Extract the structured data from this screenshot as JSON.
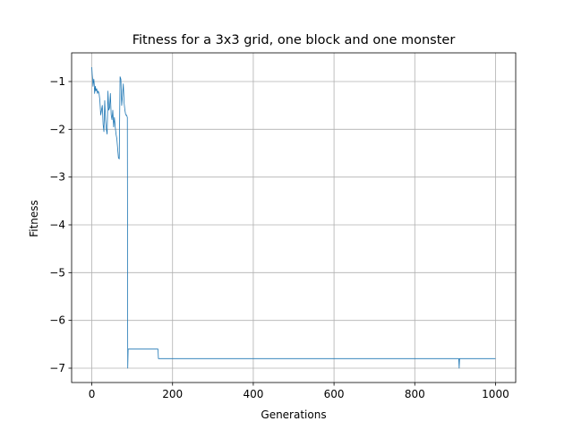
{
  "chart_data": {
    "type": "line",
    "title": "Fitness for a 3x3 grid, one block and one monster",
    "xlabel": "Generations",
    "ylabel": "Fitness",
    "xlim": [
      -50,
      1050
    ],
    "ylim": [
      -7.3,
      -0.4
    ],
    "xticks": [
      0,
      200,
      400,
      600,
      800,
      1000
    ],
    "yticks": [
      -7,
      -6,
      -5,
      -4,
      -3,
      -2,
      -1
    ],
    "grid": true,
    "series": [
      {
        "color": "#1f77b4",
        "x": [
          0,
          1,
          2,
          3,
          4,
          5,
          6,
          7,
          8,
          9,
          10,
          12,
          14,
          16,
          18,
          20,
          22,
          24,
          26,
          28,
          30,
          32,
          34,
          36,
          38,
          40,
          42,
          44,
          46,
          48,
          50,
          52,
          54,
          56,
          58,
          60,
          62,
          64,
          66,
          68,
          70,
          72,
          74,
          76,
          78,
          80,
          82,
          84,
          86,
          88,
          89,
          90,
          92,
          94,
          96,
          100,
          120,
          140,
          150,
          160,
          164,
          165,
          166,
          200,
          300,
          400,
          500,
          600,
          700,
          800,
          900,
          908,
          909,
          910,
          911,
          912,
          920,
          1000
        ],
        "y": [
          -0.7,
          -0.85,
          -0.95,
          -1.1,
          -1.0,
          -0.95,
          -1.05,
          -1.25,
          -1.15,
          -1.1,
          -1.2,
          -1.15,
          -1.25,
          -1.2,
          -1.25,
          -1.4,
          -1.7,
          -1.6,
          -1.5,
          -1.9,
          -2.05,
          -1.4,
          -1.8,
          -2.0,
          -2.1,
          -1.2,
          -1.6,
          -1.55,
          -1.25,
          -1.7,
          -1.8,
          -1.6,
          -1.95,
          -1.75,
          -1.95,
          -2.1,
          -2.2,
          -2.4,
          -2.6,
          -2.62,
          -0.9,
          -0.95,
          -1.5,
          -1.3,
          -1.05,
          -1.45,
          -1.6,
          -1.7,
          -1.7,
          -1.75,
          -7.0,
          -6.6,
          -6.6,
          -6.6,
          -6.6,
          -6.6,
          -6.6,
          -6.6,
          -6.6,
          -6.6,
          -6.6,
          -6.8,
          -6.8,
          -6.8,
          -6.8,
          -6.8,
          -6.8,
          -6.8,
          -6.8,
          -6.8,
          -6.8,
          -6.8,
          -6.8,
          -7.0,
          -6.8,
          -6.8,
          -6.8,
          -6.8
        ]
      }
    ]
  }
}
